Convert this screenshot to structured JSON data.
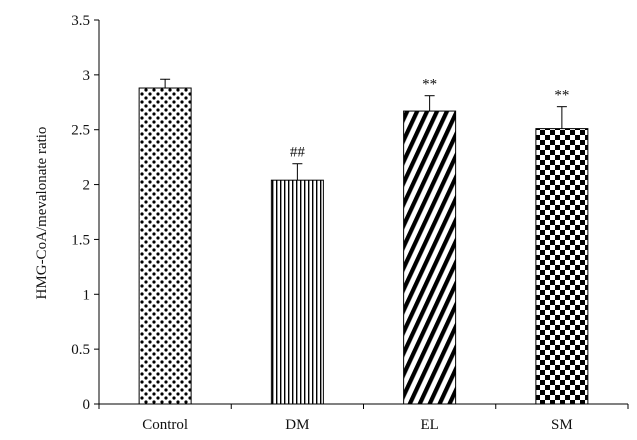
{
  "chart_data": {
    "type": "bar",
    "title": "",
    "xlabel": "",
    "ylabel": "HMG-CoA/mevalonate ratio",
    "ylim": [
      0,
      3.5
    ],
    "yticks": [
      "0",
      "0.5",
      "1",
      "1.5",
      "2",
      "2.5",
      "3",
      "3.5"
    ],
    "categories": [
      "Control",
      "DM",
      "EL",
      "SM"
    ],
    "values": [
      2.88,
      2.04,
      2.67,
      2.51
    ],
    "errors": [
      0.08,
      0.15,
      0.14,
      0.2
    ],
    "annotations": [
      "",
      "##",
      "**",
      "**"
    ],
    "patterns": [
      "dots",
      "vertical-lines",
      "diagonal-lines",
      "checkerboard"
    ],
    "grid": false,
    "legend": "none",
    "colors": {
      "ink": "#000000",
      "background": "#ffffff"
    }
  }
}
